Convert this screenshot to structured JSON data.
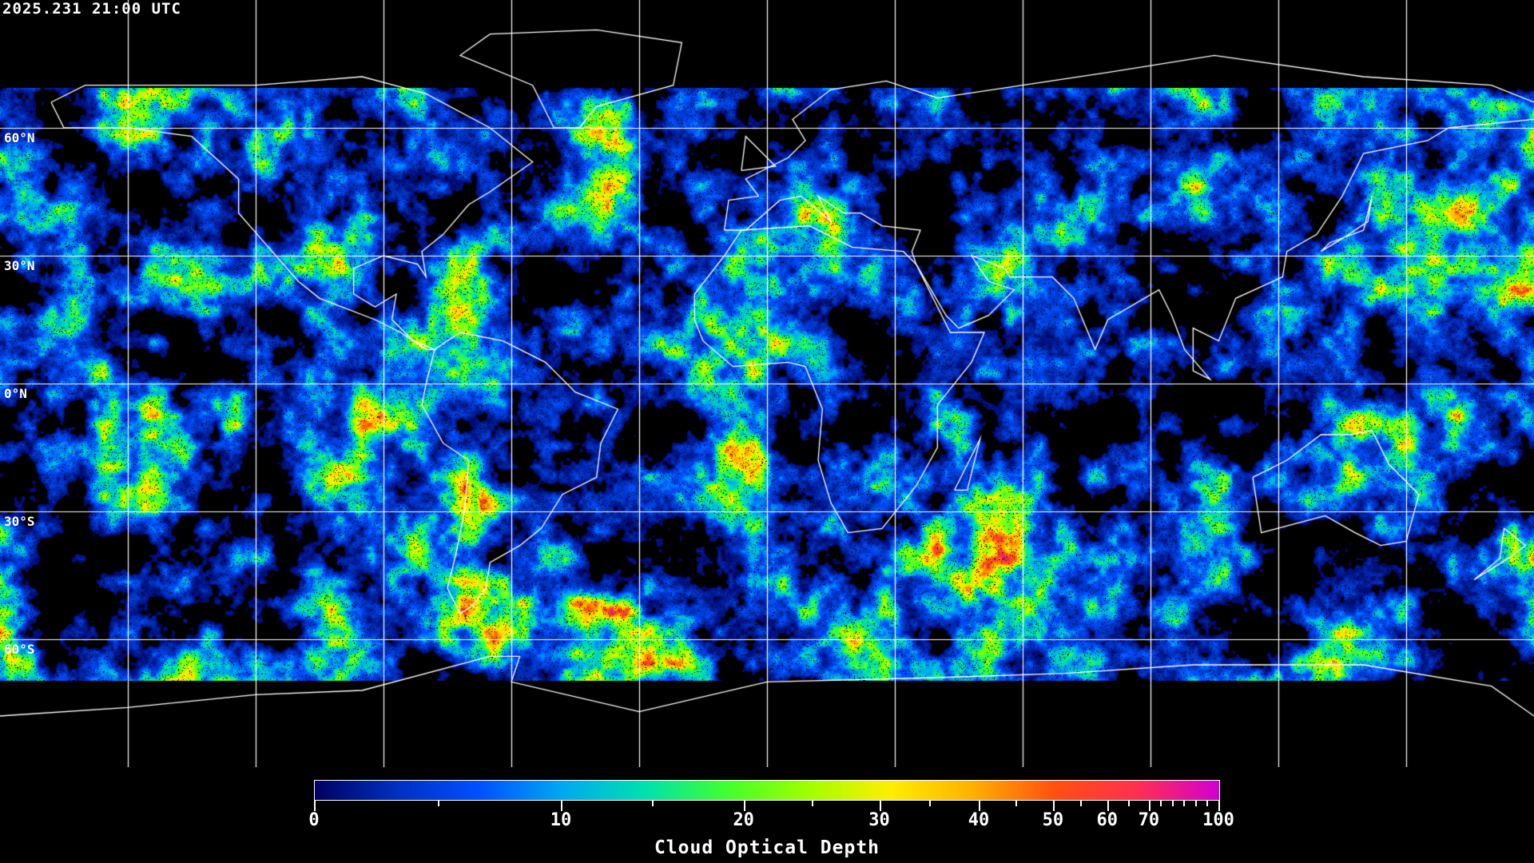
{
  "timestamp": "2025.231 21:00 UTC",
  "map": {
    "projection": "equirectangular",
    "grid_spacing_deg": 30,
    "lat_labels": [
      "60°N",
      "30°N",
      "0°N",
      "30°S",
      "60°S"
    ],
    "grid_color": "#ffffff",
    "coastline_color": "#ffffff",
    "background": "#000000"
  },
  "colorbar": {
    "title": "Cloud Optical Depth",
    "min": 0,
    "max": 100,
    "tick_labels": [
      "0",
      "10",
      "20",
      "30",
      "40",
      "50",
      "60",
      "70",
      "100"
    ],
    "colors": [
      "#000060",
      "#0030c0",
      "#0050ff",
      "#00a8f0",
      "#00e0b0",
      "#40ff30",
      "#a0ff00",
      "#ffee00",
      "#ffb000",
      "#ff5010",
      "#ff3050",
      "#d000d0"
    ]
  }
}
